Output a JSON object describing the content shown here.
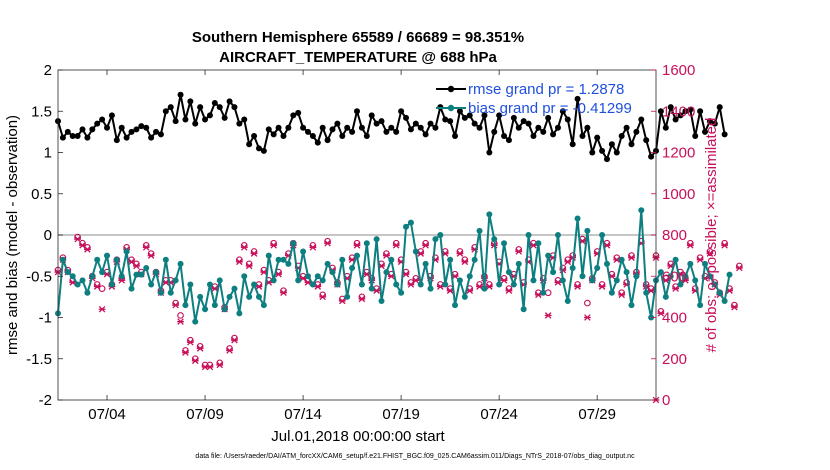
{
  "colors": {
    "rmse": "#000000",
    "bias": "#0e7f80",
    "obs": "#c8105a",
    "legend_text": "#1f4fe0",
    "zero_line": "#b4b4b4"
  },
  "chart_data": {
    "type": "line",
    "title": "Southern Hemisphere 65589 / 66689 = 98.351%",
    "subtitle": "AIRCRAFT_TEMPERATURE @ 688 hPa",
    "xlabel": "Jul.01,2018 00:00:00 start",
    "ylabel": "rmse and bias (model - observation)",
    "ylabel_right": "# of obs: o=possible; ×=assimilated",
    "xlim": [
      1.5,
      32.0
    ],
    "ylim": [
      -2,
      2
    ],
    "ylim_right": [
      0,
      1600
    ],
    "x_tick_values": [
      4,
      9,
      14,
      19,
      24,
      29
    ],
    "x_tick_labels": [
      "07/04",
      "07/09",
      "07/14",
      "07/19",
      "07/24",
      "07/29"
    ],
    "y_tick_values": [
      -2,
      -1.5,
      -1,
      -0.5,
      0,
      0.5,
      1,
      1.5,
      2
    ],
    "y_tick_labels": [
      "-2",
      "-1.5",
      "-1",
      "-0.5",
      "0",
      "0.5",
      "1",
      "1.5",
      "2"
    ],
    "y_right_tick_values": [
      0,
      200,
      400,
      600,
      800,
      1000,
      1200,
      1400,
      1600
    ],
    "y_right_tick_labels": [
      "0",
      "200",
      "400",
      "600",
      "800",
      "1000",
      "1200",
      "1400",
      "1600"
    ],
    "x_start": 1.5,
    "x_step": 0.25,
    "series": [
      {
        "name": "rmse",
        "legend": "rmse grand pr = 1.2878",
        "axis": "left",
        "values": [
          1.38,
          1.18,
          1.25,
          1.2,
          1.2,
          1.28,
          1.18,
          1.28,
          1.35,
          1.4,
          1.3,
          1.45,
          1.15,
          1.3,
          1.18,
          1.25,
          1.28,
          1.32,
          1.3,
          1.18,
          1.25,
          1.22,
          1.5,
          1.55,
          1.38,
          1.7,
          1.4,
          1.62,
          1.35,
          1.55,
          1.4,
          1.45,
          1.6,
          1.55,
          1.42,
          1.62,
          1.55,
          1.35,
          1.4,
          1.1,
          1.2,
          1.05,
          1.02,
          1.28,
          1.22,
          1.3,
          1.2,
          1.3,
          1.45,
          1.48,
          1.3,
          1.25,
          1.2,
          1.12,
          1.3,
          1.15,
          1.28,
          1.35,
          1.2,
          1.3,
          1.25,
          1.5,
          1.3,
          1.2,
          1.45,
          1.35,
          1.38,
          1.25,
          1.3,
          1.25,
          1.5,
          1.42,
          1.28,
          1.35,
          1.3,
          1.22,
          1.35,
          1.3,
          1.55,
          1.4,
          1.38,
          1.2,
          1.5,
          1.42,
          1.45,
          1.35,
          1.3,
          1.45,
          1.0,
          1.25,
          1.45,
          1.2,
          1.15,
          1.42,
          1.3,
          1.38,
          1.35,
          1.2,
          1.3,
          1.25,
          1.42,
          1.22,
          1.3,
          1.5,
          1.4,
          1.1,
          1.65,
          1.2,
          1.3,
          1.0,
          1.18,
          1.02,
          0.92,
          1.1,
          1.0,
          1.2,
          1.3,
          1.1,
          1.25,
          1.4,
          1.15,
          0.95,
          1.02,
          1.5,
          1.3,
          1.55,
          1.4,
          1.45,
          1.5,
          1.52,
          1.2,
          1.5,
          1.25,
          1.38,
          1.35,
          1.55,
          1.22
        ]
      },
      {
        "name": "bias",
        "legend": "bias grand pr = -0.41299",
        "axis": "left",
        "values": [
          -0.95,
          -0.3,
          -0.45,
          -0.5,
          -0.6,
          -0.55,
          -0.7,
          -0.5,
          -0.3,
          -0.45,
          -0.25,
          -0.6,
          -0.3,
          -0.5,
          -0.2,
          -0.65,
          -0.48,
          -0.48,
          -0.4,
          -0.6,
          -0.45,
          -0.7,
          -0.3,
          -0.7,
          -0.55,
          -0.35,
          -0.85,
          -0.6,
          -1.05,
          -0.75,
          -0.9,
          -0.6,
          -0.85,
          -0.55,
          -0.9,
          -0.75,
          -0.65,
          -0.95,
          -0.5,
          -0.75,
          -0.6,
          -0.75,
          -0.85,
          -0.25,
          -0.55,
          -0.3,
          -0.3,
          -0.35,
          -0.1,
          -0.55,
          -0.2,
          -0.5,
          -0.6,
          -0.5,
          -0.55,
          -0.35,
          -0.45,
          -0.6,
          -0.3,
          -0.75,
          -0.4,
          -0.25,
          -0.6,
          -0.1,
          -0.65,
          -0.05,
          -0.8,
          -0.45,
          -0.3,
          -0.6,
          -0.7,
          0.1,
          0.15,
          -0.2,
          -0.6,
          -0.35,
          -0.65,
          -0.05,
          0.0,
          -0.6,
          -0.3,
          -0.85,
          -0.55,
          -0.75,
          -0.5,
          -0.3,
          0.05,
          -0.65,
          0.25,
          -0.05,
          -0.6,
          -0.1,
          -0.45,
          -0.6,
          -0.35,
          -0.9,
          0.0,
          -0.55,
          -0.1,
          -0.7,
          -0.25,
          -0.45,
          0.0,
          -0.55,
          -0.8,
          -0.4,
          0.2,
          -0.5,
          0.05,
          -0.55,
          -0.4,
          0.0,
          -0.35,
          -0.7,
          -0.55,
          -0.3,
          -0.45,
          -0.85,
          -0.5,
          0.3,
          -0.7,
          -1.0,
          -0.55,
          -0.45,
          -0.75,
          -0.5,
          -0.3,
          -0.6,
          -0.5,
          -0.35,
          -0.55,
          -0.85,
          -0.35,
          -0.5,
          -0.6,
          -0.7,
          -0.8,
          -0.48
        ]
      },
      {
        "name": "obs_possible",
        "axis": "right",
        "marker": "circle",
        "values": [
          630,
          690,
          630,
          580,
          790,
          760,
          740,
          600,
          560,
          540,
          620,
          560,
          680,
          590,
          740,
          680,
          660,
          620,
          750,
          710,
          620,
          530,
          580,
          580,
          470,
          410,
          240,
          290,
          200,
          260,
          170,
          170,
          550,
          180,
          450,
          250,
          300,
          680,
          750,
          660,
          720,
          560,
          630,
          580,
          760,
          620,
          530,
          710,
          760,
          650,
          600,
          580,
          750,
          560,
          510,
          770,
          640,
          570,
          490,
          600,
          690,
          760,
          500,
          620,
          590,
          540,
          660,
          710,
          610,
          760,
          680,
          620,
          570,
          590,
          720,
          760,
          600,
          690,
          560,
          720,
          540,
          610,
          720,
          680,
          540,
          740,
          560,
          600,
          560,
          760,
          670,
          590,
          540,
          610,
          730,
          570,
          680,
          760,
          520,
          590,
          520,
          700,
          580,
          640,
          680,
          700,
          560,
          780,
          470,
          590,
          720,
          560,
          760,
          610,
          690,
          520,
          570,
          700,
          620,
          770,
          560,
          540,
          700,
          430,
          590,
          660,
          550,
          620,
          590,
          760,
          540,
          690,
          600,
          720,
          570,
          520,
          760,
          540,
          460,
          650
        ]
      },
      {
        "name": "obs_assimilated",
        "axis": "right",
        "marker": "x",
        "values": [
          620,
          680,
          620,
          570,
          780,
          750,
          730,
          590,
          550,
          440,
          610,
          550,
          670,
          580,
          730,
          670,
          650,
          610,
          740,
          700,
          610,
          520,
          570,
          570,
          460,
          380,
          230,
          280,
          190,
          250,
          160,
          160,
          540,
          170,
          440,
          240,
          290,
          670,
          740,
          650,
          710,
          550,
          620,
          570,
          750,
          610,
          520,
          700,
          750,
          640,
          590,
          570,
          740,
          550,
          500,
          760,
          630,
          560,
          480,
          590,
          680,
          750,
          490,
          610,
          580,
          530,
          650,
          700,
          600,
          750,
          670,
          610,
          560,
          580,
          710,
          750,
          590,
          680,
          550,
          710,
          530,
          600,
          710,
          670,
          530,
          730,
          550,
          590,
          550,
          750,
          660,
          580,
          530,
          600,
          720,
          560,
          670,
          750,
          510,
          580,
          410,
          690,
          570,
          630,
          670,
          690,
          550,
          770,
          400,
          580,
          710,
          550,
          750,
          600,
          680,
          510,
          560,
          690,
          610,
          760,
          550,
          530,
          690,
          420,
          580,
          650,
          540,
          610,
          580,
          750,
          530,
          680,
          590,
          710,
          560,
          510,
          750,
          530,
          450,
          640
        ]
      }
    ],
    "extra_points": [
      {
        "name": "obs_end",
        "axis": "right",
        "x": 32.0,
        "value": 0,
        "marker": "x"
      }
    ],
    "footer": "data file: /Users/raeder/DAI/ATM_forcXX/CAM6_setup/f.e21.FHIST_BGC.f09_025.CAM6assim.011/Diags_NTrS_2018-07/obs_diag_output.nc"
  }
}
